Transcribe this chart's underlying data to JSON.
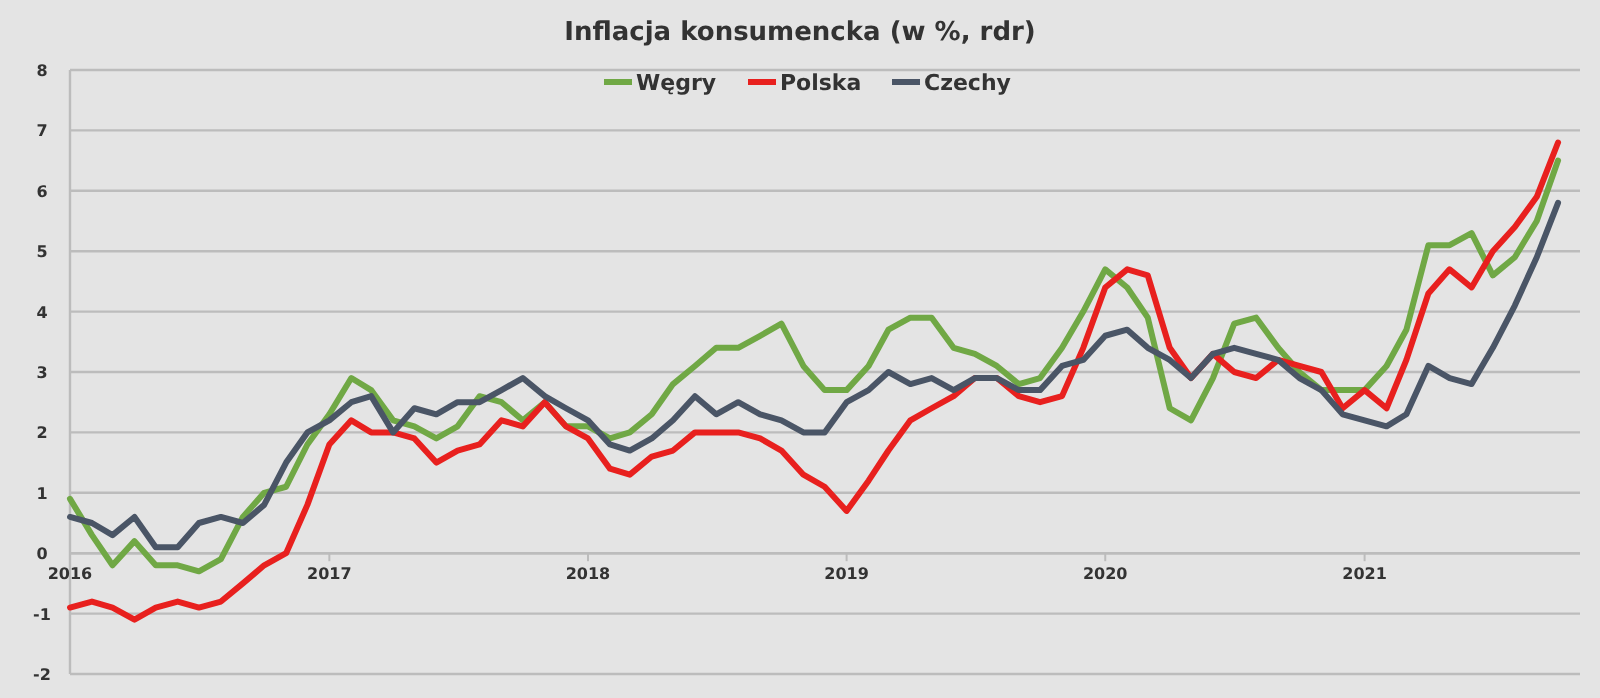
{
  "chart_data": {
    "type": "line",
    "title": "Inflacja konsumencka (w %, rdr)",
    "x": [
      "2016-01",
      "2016-02",
      "2016-03",
      "2016-04",
      "2016-05",
      "2016-06",
      "2016-07",
      "2016-08",
      "2016-09",
      "2016-10",
      "2016-11",
      "2016-12",
      "2017-01",
      "2017-02",
      "2017-03",
      "2017-04",
      "2017-05",
      "2017-06",
      "2017-07",
      "2017-08",
      "2017-09",
      "2017-10",
      "2017-11",
      "2017-12",
      "2018-01",
      "2018-02",
      "2018-03",
      "2018-04",
      "2018-05",
      "2018-06",
      "2018-07",
      "2018-08",
      "2018-09",
      "2018-10",
      "2018-11",
      "2018-12",
      "2019-01",
      "2019-02",
      "2019-03",
      "2019-04",
      "2019-05",
      "2019-06",
      "2019-07",
      "2019-08",
      "2019-09",
      "2019-10",
      "2019-11",
      "2019-12",
      "2020-01",
      "2020-02",
      "2020-03",
      "2020-04",
      "2020-05",
      "2020-06",
      "2020-07",
      "2020-08",
      "2020-09",
      "2020-10",
      "2020-11",
      "2020-12",
      "2021-01",
      "2021-02",
      "2021-03",
      "2021-04",
      "2021-05",
      "2021-06",
      "2021-07",
      "2021-08",
      "2021-09",
      "2021-10"
    ],
    "series": [
      {
        "name": "Węgry",
        "color": "#70a845",
        "values": [
          0.9,
          0.3,
          -0.2,
          0.2,
          -0.2,
          -0.2,
          -0.3,
          -0.1,
          0.6,
          1.0,
          1.1,
          1.8,
          2.3,
          2.9,
          2.7,
          2.2,
          2.1,
          1.9,
          2.1,
          2.6,
          2.5,
          2.2,
          2.5,
          2.1,
          2.1,
          1.9,
          2.0,
          2.3,
          2.8,
          3.1,
          3.4,
          3.4,
          3.6,
          3.8,
          3.1,
          2.7,
          2.7,
          3.1,
          3.7,
          3.9,
          3.9,
          3.4,
          3.3,
          3.1,
          2.8,
          2.9,
          3.4,
          4.0,
          4.7,
          4.4,
          3.9,
          2.4,
          2.2,
          2.9,
          3.8,
          3.9,
          3.4,
          3.0,
          2.7,
          2.7,
          2.7,
          3.1,
          3.7,
          5.1,
          5.1,
          5.3,
          4.6,
          4.9,
          5.5,
          6.5
        ]
      },
      {
        "name": "Polska",
        "color": "#e8201e",
        "values": [
          -0.9,
          -0.8,
          -0.9,
          -1.1,
          -0.9,
          -0.8,
          -0.9,
          -0.8,
          -0.5,
          -0.2,
          0.0,
          0.8,
          1.8,
          2.2,
          2.0,
          2.0,
          1.9,
          1.5,
          1.7,
          1.8,
          2.2,
          2.1,
          2.5,
          2.1,
          1.9,
          1.4,
          1.3,
          1.6,
          1.7,
          2.0,
          2.0,
          2.0,
          1.9,
          1.7,
          1.3,
          1.1,
          0.7,
          1.2,
          1.7,
          2.2,
          2.4,
          2.6,
          2.9,
          2.9,
          2.6,
          2.5,
          2.6,
          3.4,
          4.4,
          4.7,
          4.6,
          3.4,
          2.9,
          3.3,
          3.0,
          2.9,
          3.2,
          3.1,
          3.0,
          2.4,
          2.7,
          2.4,
          3.2,
          4.3,
          4.7,
          4.4,
          5.0,
          5.4,
          5.9,
          6.8
        ]
      },
      {
        "name": "Czechy",
        "color": "#4a5566",
        "values": [
          0.6,
          0.5,
          0.3,
          0.6,
          0.1,
          0.1,
          0.5,
          0.6,
          0.5,
          0.8,
          1.5,
          2.0,
          2.2,
          2.5,
          2.6,
          2.0,
          2.4,
          2.3,
          2.5,
          2.5,
          2.7,
          2.9,
          2.6,
          2.4,
          2.2,
          1.8,
          1.7,
          1.9,
          2.2,
          2.6,
          2.3,
          2.5,
          2.3,
          2.2,
          2.0,
          2.0,
          2.5,
          2.7,
          3.0,
          2.8,
          2.9,
          2.7,
          2.9,
          2.9,
          2.7,
          2.7,
          3.1,
          3.2,
          3.6,
          3.7,
          3.4,
          3.2,
          2.9,
          3.3,
          3.4,
          3.3,
          3.2,
          2.9,
          2.7,
          2.3,
          2.2,
          2.1,
          2.3,
          3.1,
          2.9,
          2.8,
          3.4,
          4.1,
          4.9,
          5.8
        ]
      }
    ],
    "xlim": [
      "2016-01",
      "2021-11"
    ],
    "xticks": [
      {
        "value": "2016-01",
        "label": "2016"
      },
      {
        "value": "2017-01",
        "label": "2017"
      },
      {
        "value": "2018-01",
        "label": "2018"
      },
      {
        "value": "2019-01",
        "label": "2019"
      },
      {
        "value": "2020-01",
        "label": "2020"
      },
      {
        "value": "2021-01",
        "label": "2021"
      }
    ],
    "ylim": [
      -2,
      8
    ],
    "yticks": [
      -2,
      -1,
      0,
      1,
      2,
      3,
      4,
      5,
      6,
      7,
      8
    ],
    "grid": "y",
    "legend": "top",
    "marker": "none",
    "line_style": "solid"
  }
}
